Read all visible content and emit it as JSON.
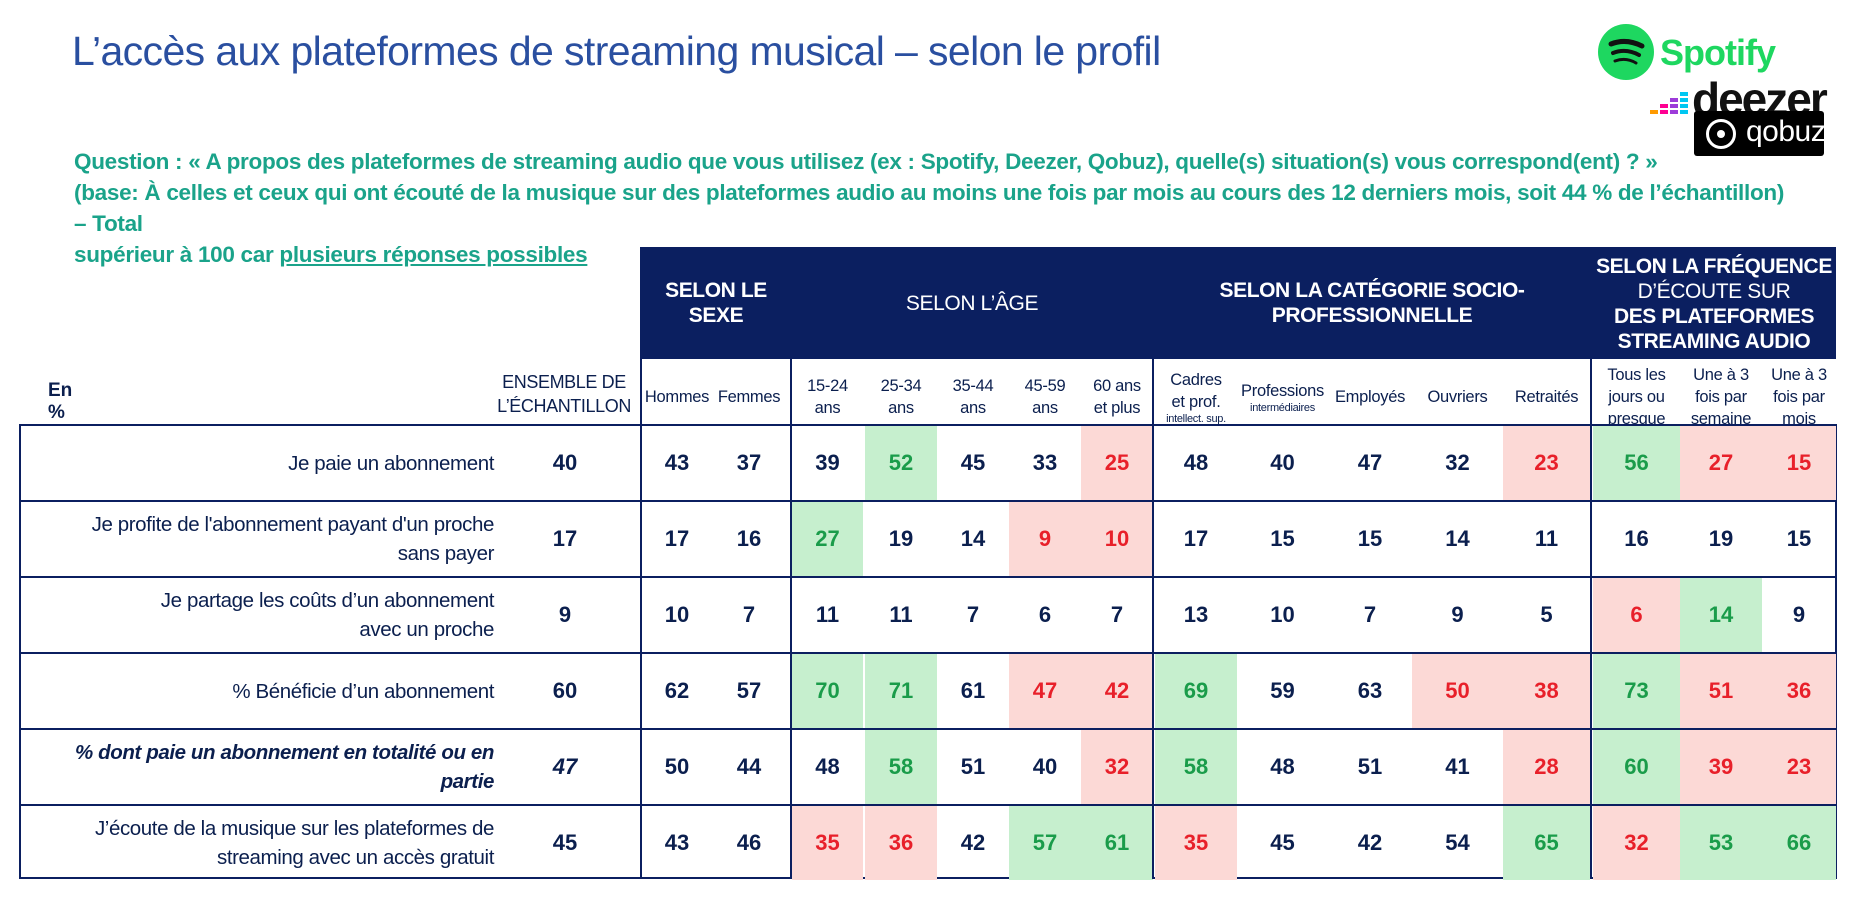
{
  "title": "L’accès aux plateformes de streaming musical – selon le profil",
  "question": {
    "line1": "Question : « A propos des plateformes de streaming audio que vous utilisez (ex : Spotify, Deezer, Qobuz), quelle(s) situation(s) vous correspond(ent) ?  »",
    "line2": "(base: À celles et ceux qui ont écouté de la musique sur des plateformes audio au moins une fois par mois au cours des 12 derniers mois, soit 44 % de l’échantillon) – Total",
    "line3_prefix": "supérieur à 100 car ",
    "line3_underlined": "plusieurs réponses possibles"
  },
  "logos": {
    "spotify": "Spotify",
    "deezer": "deezer",
    "qobuz": "qobuz",
    "spotify_color": "#1ed760"
  },
  "table": {
    "unit_label": "En %",
    "ensemble_label_1": "ENSEMBLE DE",
    "ensemble_label_2": "L’ÉCHANTILLON",
    "groups": {
      "sexe": "SELON LE SEXE",
      "age": "SELON L’ÂGE",
      "csp_1": "SELON LA CATÉGORIE SOCIO-",
      "csp_2": "PROFESSIONNELLE",
      "freq_1": "SELON LA FRÉQUENCE",
      "freq_2": "D’ÉCOUTE SUR",
      "freq_3": "DES PLATEFORMES",
      "freq_4": "STREAMING AUDIO"
    },
    "columns": [
      {
        "l1": "Hommes"
      },
      {
        "l1": "Femmes"
      },
      {
        "l1": "15-24",
        "l2": "ans"
      },
      {
        "l1": "25-34",
        "l2": "ans"
      },
      {
        "l1": "35-44",
        "l2": "ans"
      },
      {
        "l1": "45-59",
        "l2": "ans"
      },
      {
        "l1": "60 ans",
        "l2": "et plus"
      },
      {
        "l1": "Cadres",
        "l2": "et prof.",
        "l3": "intellect. sup."
      },
      {
        "l1": "Professions",
        "l3": "intermédiaires"
      },
      {
        "l1": "Employés"
      },
      {
        "l1": "Ouvriers"
      },
      {
        "l1": "Retraités"
      },
      {
        "l1": "Tous les",
        "l2": "jours ou",
        "l3b": "presque"
      },
      {
        "l1": "Une à 3",
        "l2": "fois par",
        "l3b": "semaine"
      },
      {
        "l1": "Une à 3",
        "l2": "fois par",
        "l3b": "mois"
      }
    ],
    "rows": [
      {
        "label1": "Je paie un abonnement",
        "label2": "",
        "ensemble": "40",
        "values": [
          "43",
          "37",
          "39",
          "52",
          "45",
          "33",
          "25",
          "48",
          "40",
          "47",
          "32",
          "23",
          "56",
          "27",
          "15"
        ],
        "hl": [
          "",
          "",
          "",
          "g",
          "",
          "",
          "r",
          "",
          "",
          "",
          "",
          "r",
          "g",
          "r",
          "r"
        ]
      },
      {
        "label1": "Je profite de l'abonnement payant d'un proche",
        "label2": "sans payer",
        "ensemble": "17",
        "values": [
          "17",
          "16",
          "27",
          "19",
          "14",
          "9",
          "10",
          "17",
          "15",
          "15",
          "14",
          "11",
          "16",
          "19",
          "15"
        ],
        "hl": [
          "",
          "",
          "g",
          "",
          "",
          "r",
          "r",
          "",
          "",
          "",
          "",
          "",
          "",
          "",
          ""
        ]
      },
      {
        "label1": "Je partage les coûts d’un abonnement",
        "label2": "avec un proche",
        "ensemble": "9",
        "values": [
          "10",
          "7",
          "11",
          "11",
          "7",
          "6",
          "7",
          "13",
          "10",
          "7",
          "9",
          "5",
          "6",
          "14",
          "9"
        ],
        "hl": [
          "",
          "",
          "",
          "",
          "",
          "",
          "",
          "",
          "",
          "",
          "",
          "",
          "r",
          "g",
          ""
        ]
      },
      {
        "label1": "% Bénéficie d’un abonnement",
        "label2": "",
        "ensemble": "60",
        "values": [
          "62",
          "57",
          "70",
          "71",
          "61",
          "47",
          "42",
          "69",
          "59",
          "63",
          "50",
          "38",
          "73",
          "51",
          "36"
        ],
        "hl": [
          "",
          "",
          "g",
          "g",
          "",
          "r",
          "r",
          "g",
          "",
          "",
          "r",
          "r",
          "g",
          "r",
          "r"
        ]
      },
      {
        "label1": "% dont paie un abonnement en totalité ou en partie",
        "label2": "",
        "ensemble": "47",
        "values": [
          "50",
          "44",
          "48",
          "58",
          "51",
          "40",
          "32",
          "58",
          "48",
          "51",
          "41",
          "28",
          "60",
          "39",
          "23"
        ],
        "hl": [
          "",
          "",
          "",
          "g",
          "",
          "",
          "r",
          "g",
          "",
          "",
          "",
          "r",
          "g",
          "r",
          "r"
        ]
      },
      {
        "label1": "J’écoute de la musique sur les plateformes de",
        "label2": "streaming avec un accès gratuit",
        "ensemble": "45",
        "values": [
          "43",
          "46",
          "35",
          "36",
          "42",
          "57",
          "61",
          "35",
          "45",
          "42",
          "54",
          "65",
          "32",
          "53",
          "66"
        ],
        "hl": [
          "",
          "",
          "r",
          "r",
          "",
          "g",
          "g",
          "r",
          "",
          "",
          "",
          "g",
          "r",
          "g",
          "g"
        ]
      }
    ]
  }
}
